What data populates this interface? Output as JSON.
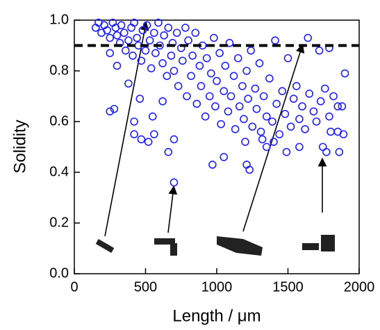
{
  "chart_data": {
    "type": "scatter",
    "x_label": "Length / μm",
    "y_label": "Solidity",
    "color": "#1f1fff",
    "threshold": 0.9,
    "xlim": [
      0,
      2000
    ],
    "xticks": [
      0,
      500,
      1000,
      1500,
      2000
    ],
    "ylim": [
      0,
      1
    ],
    "yticks": [
      {
        "value": 0,
        "label": "0.0"
      },
      0.2,
      0.4,
      0.6,
      0.8,
      {
        "value": 1,
        "label": "1.0"
      }
    ],
    "x": [
      150,
      170,
      190,
      210,
      230,
      250,
      270,
      290,
      300,
      320,
      330,
      350,
      360,
      380,
      400,
      410,
      420,
      440,
      450,
      470,
      480,
      500,
      510,
      530,
      540,
      560,
      570,
      590,
      600,
      620,
      630,
      650,
      660,
      680,
      690,
      700,
      720,
      730,
      750,
      760,
      780,
      790,
      800,
      820,
      830,
      850,
      860,
      880,
      890,
      900,
      920,
      930,
      950,
      960,
      980,
      990,
      1000,
      1020,
      1030,
      1050,
      1060,
      1080,
      1090,
      1100,
      1120,
      1130,
      1150,
      1160,
      1180,
      1190,
      1210,
      1220,
      1240,
      1250,
      1270,
      1280,
      1300,
      1310,
      1330,
      1350,
      1370,
      1390,
      1410,
      1420,
      1440,
      1460,
      1480,
      1500,
      1520,
      1540,
      1560,
      1580,
      1600,
      1620,
      1650,
      1680,
      1700,
      1730,
      1760,
      1790,
      1820,
      1850,
      380,
      300,
      460,
      550,
      620,
      420,
      250,
      700,
      1745,
      1770,
      1860,
      1850,
      1890,
      1800,
      1880,
      1900,
      1790,
      1720,
      1640,
      1230,
      1210,
      970,
      660,
      470,
      520,
      280,
      250,
      1050,
      1200,
      1320,
      1350,
      1400,
      1490,
      1580,
      420,
      560,
      700
    ],
    "values": [
      0.97,
      0.99,
      0.95,
      0.98,
      0.96,
      0.93,
      0.99,
      0.97,
      0.94,
      0.91,
      0.98,
      0.95,
      0.88,
      0.92,
      0.97,
      0.86,
      0.99,
      0.93,
      0.9,
      0.84,
      0.96,
      0.88,
      0.98,
      0.92,
      0.81,
      0.95,
      0.87,
      0.99,
      0.9,
      0.83,
      0.94,
      0.78,
      0.97,
      0.86,
      0.91,
      0.8,
      0.95,
      0.74,
      0.89,
      0.84,
      0.97,
      0.7,
      0.92,
      0.78,
      0.86,
      0.95,
      0.67,
      0.82,
      0.74,
      0.9,
      0.62,
      0.85,
      0.7,
      0.79,
      0.93,
      0.66,
      0.76,
      0.87,
      0.59,
      0.72,
      0.82,
      0.64,
      0.91,
      0.7,
      0.78,
      0.57,
      0.85,
      0.66,
      0.74,
      0.61,
      0.8,
      0.69,
      0.88,
      0.58,
      0.73,
      0.65,
      0.83,
      0.56,
      0.7,
      0.62,
      0.77,
      0.6,
      0.92,
      0.67,
      0.55,
      0.72,
      0.63,
      0.85,
      0.58,
      0.69,
      0.74,
      0.61,
      0.66,
      0.57,
      0.71,
      0.64,
      0.6,
      0.68,
      0.73,
      0.62,
      0.7,
      0.66,
      0.75,
      0.82,
      0.69,
      0.62,
      0.68,
      0.6,
      0.87,
      0.36,
      0.5,
      0.48,
      0.48,
      0.56,
      0.55,
      0.56,
      0.66,
      0.79,
      0.89,
      0.88,
      0.93,
      0.41,
      0.43,
      0.43,
      0.48,
      0.53,
      0.52,
      0.65,
      0.64,
      0.46,
      0.52,
      0.53,
      0.5,
      0.52,
      0.48,
      0.5,
      0.55,
      0.55,
      0.53
    ]
  }
}
